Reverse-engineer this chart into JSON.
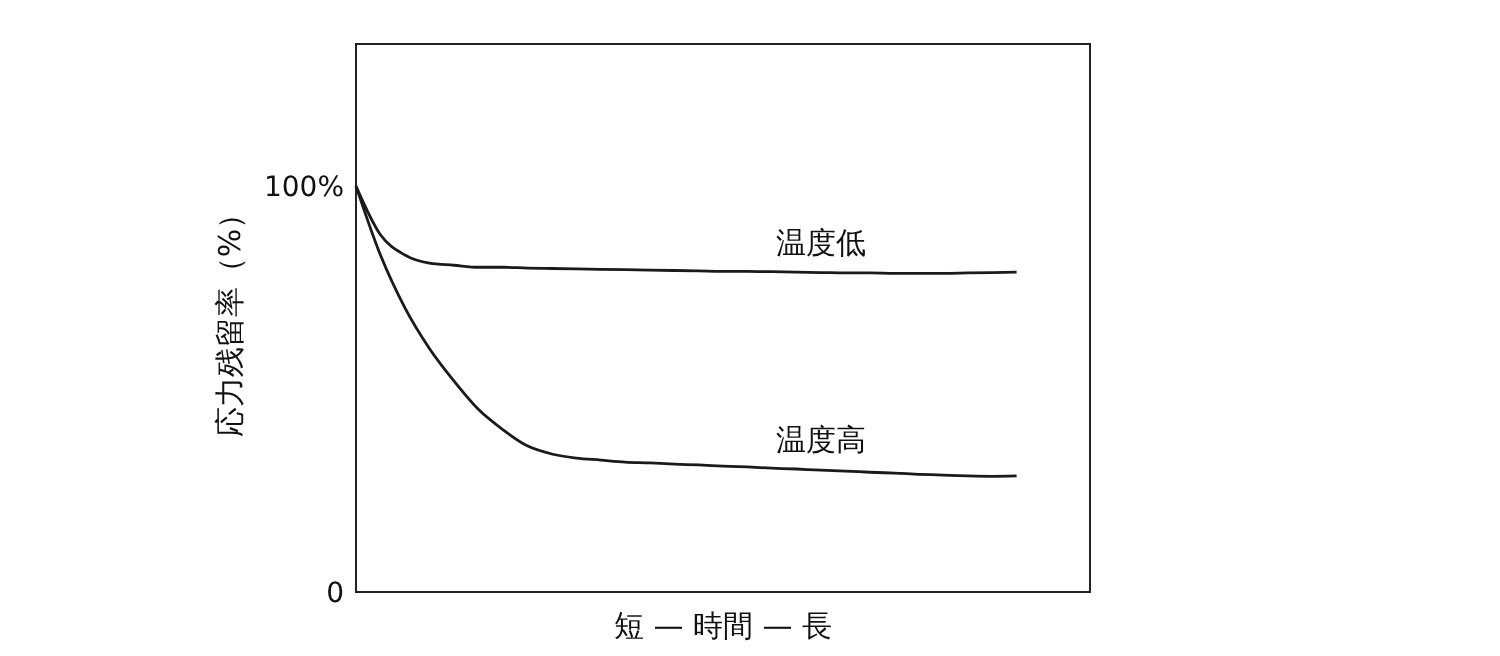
{
  "chart_data": {
    "type": "line",
    "xlabel": "短 — 時間 — 長",
    "ylabel": "応力残留率（%）",
    "ylim": [
      0,
      135
    ],
    "yticks": [
      {
        "value": 0,
        "label": "0"
      },
      {
        "value": 100,
        "label": "100%"
      }
    ],
    "grid": false,
    "marker": "none",
    "line_style": "solid",
    "categories": [
      null,
      null,
      null,
      null,
      null,
      null,
      null,
      null,
      null,
      null,
      null,
      null,
      null,
      null,
      null,
      null,
      null,
      null,
      null,
      null,
      null,
      null,
      null,
      null,
      null,
      null,
      null,
      null
    ],
    "series": [
      {
        "name": "温度低",
        "color": "#1a1a1a",
        "values": [
          100,
          88,
          83,
          81,
          80.5,
          80,
          80,
          79.8,
          79.7,
          79.6,
          79.5,
          79.4,
          79.3,
          79.2,
          79.1,
          79,
          79,
          78.9,
          78.8,
          78.7,
          78.6,
          78.6,
          78.5,
          78.5,
          78.5,
          78.6,
          78.7,
          78.8
        ]
      },
      {
        "name": "温度高",
        "color": "#1a1a1a",
        "values": [
          100,
          83,
          70,
          60,
          52,
          45,
          40,
          36,
          34,
          33,
          32.5,
          32,
          31.8,
          31.5,
          31.3,
          31,
          30.8,
          30.5,
          30.3,
          30,
          29.8,
          29.5,
          29.3,
          29,
          28.8,
          28.6,
          28.5,
          28.6
        ]
      }
    ]
  }
}
